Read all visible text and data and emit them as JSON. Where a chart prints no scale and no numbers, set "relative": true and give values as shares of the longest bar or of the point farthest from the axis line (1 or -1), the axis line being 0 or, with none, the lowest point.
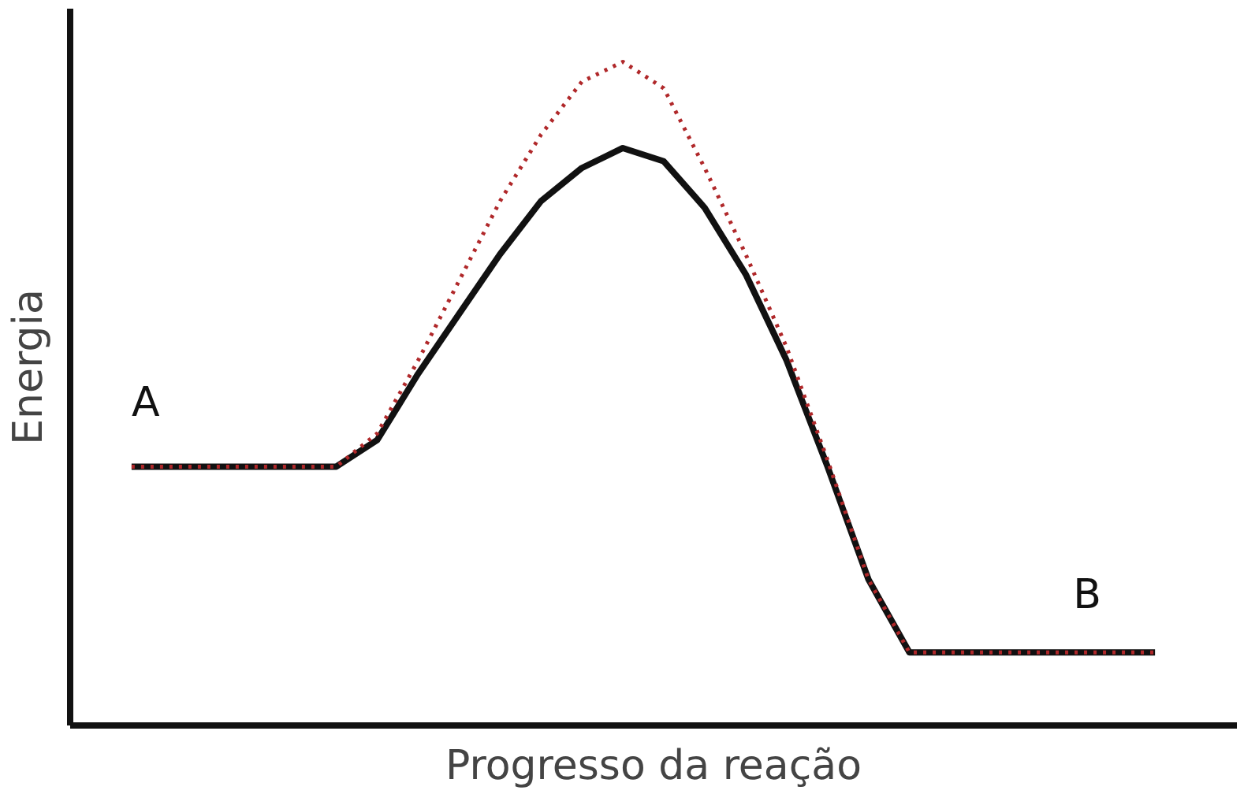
{
  "chart_data": {
    "type": "line",
    "relative": true,
    "xlabel": "Progresso da reação",
    "ylabel": "Energia",
    "grid": false,
    "categories": [
      null,
      null,
      null,
      null,
      null,
      null,
      null,
      null,
      null,
      null,
      null,
      null,
      null,
      null,
      null,
      null,
      null,
      null,
      null,
      null,
      null,
      null,
      null,
      null,
      null,
      null
    ],
    "series": [
      {
        "color": "#111111",
        "line_style": "solid",
        "values": [
          0.39,
          0.39,
          0.39,
          0.39,
          0.39,
          0.39,
          0.43,
          0.53,
          0.62,
          0.71,
          0.79,
          0.84,
          0.87,
          0.85,
          0.78,
          0.68,
          0.55,
          0.39,
          0.22,
          0.11,
          0.11,
          0.11,
          0.11,
          0.11,
          0.11,
          0.11
        ]
      },
      {
        "color": "#b0282a",
        "line_style": "dotted",
        "values": [
          0.39,
          0.39,
          0.39,
          0.39,
          0.39,
          0.39,
          0.44,
          0.55,
          0.67,
          0.79,
          0.89,
          0.97,
          1.0,
          0.96,
          0.84,
          0.71,
          0.57,
          0.4,
          0.22,
          0.11,
          0.11,
          0.11,
          0.11,
          0.11,
          0.11,
          0.11
        ]
      }
    ],
    "annotations": [
      "A",
      "B"
    ]
  }
}
